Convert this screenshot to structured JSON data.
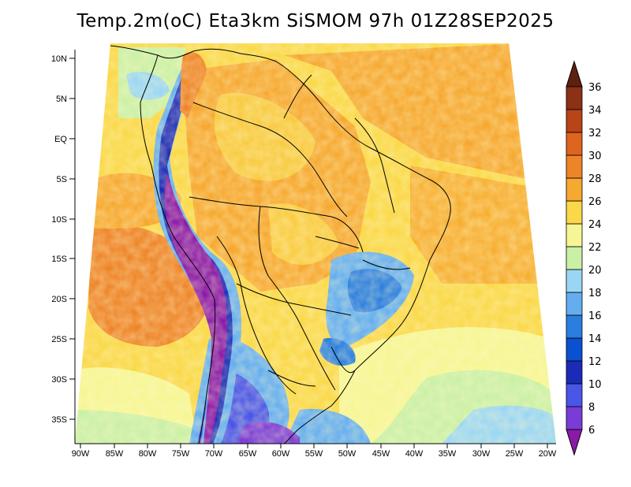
{
  "title": "Temp.2m(oC) Eta3km SiSMOM 97h 01Z28SEP2025",
  "variable": "Temp.2m",
  "units": "oC",
  "model": "Eta3km",
  "lat_ticks": [
    "10N",
    "5N",
    "EQ",
    "5S",
    "10S",
    "15S",
    "20S",
    "25S",
    "30S",
    "35S"
  ],
  "lon_ticks": [
    "90W",
    "85W",
    "80W",
    "75W",
    "70W",
    "65W",
    "60W",
    "55W",
    "50W",
    "45W",
    "40W",
    "35W",
    "30W",
    "25W",
    "20W"
  ],
  "colorbar": {
    "levels": [
      "6",
      "8",
      "10",
      "12",
      "14",
      "16",
      "18",
      "20",
      "22",
      "24",
      "26",
      "28",
      "30",
      "32",
      "34",
      "36"
    ],
    "colors": [
      "#8a1aa8",
      "#7a3cd6",
      "#4a56e8",
      "#1c2ab8",
      "#0a50d0",
      "#2a7ee0",
      "#64aef0",
      "#9ad6f4",
      "#caf0a6",
      "#f6f694",
      "#fad848",
      "#f6a830",
      "#ee8428",
      "#de6420",
      "#b84418",
      "#8c3016",
      "#5e2010"
    ]
  }
}
